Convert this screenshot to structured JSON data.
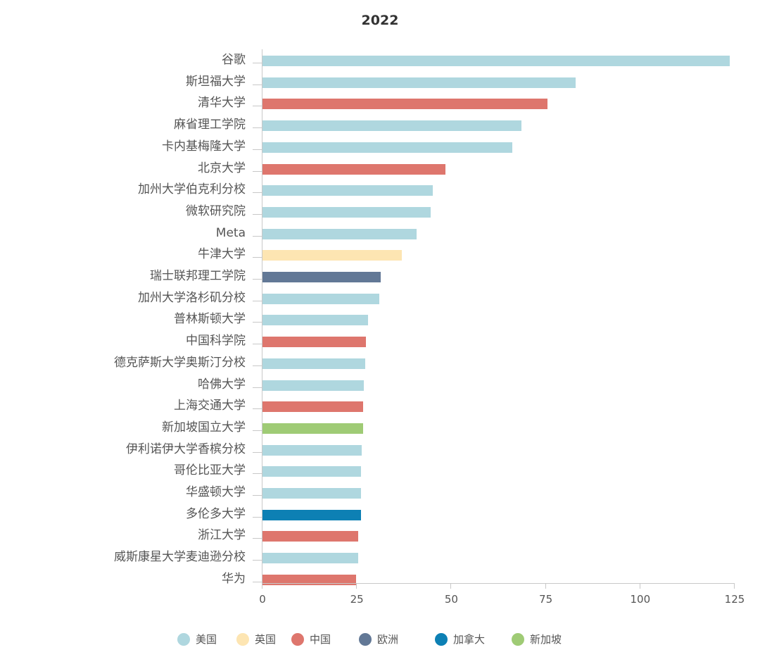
{
  "chart_data": {
    "type": "bar",
    "orientation": "horizontal",
    "title": "2022",
    "xlabel": "",
    "ylabel": "",
    "xlim": [
      0,
      125
    ],
    "x_ticks": [
      "0",
      "25",
      "50",
      "75",
      "100",
      "125"
    ],
    "grid": false,
    "legend_position": "bottom",
    "legend": [
      {
        "name": "美国",
        "color": "#afd7df"
      },
      {
        "name": "英国",
        "color": "#fde5b2"
      },
      {
        "name": "中国",
        "color": "#de766d"
      },
      {
        "name": "欧洲",
        "color": "#627896"
      },
      {
        "name": "加拿大",
        "color": "#0d80b4"
      },
      {
        "name": "新加坡",
        "color": "#9fcb75"
      }
    ],
    "categories": [
      "谷歌",
      "斯坦福大学",
      "清华大学",
      "麻省理工学院",
      "卡内基梅隆大学",
      "北京大学",
      "加州大学伯克利分校",
      "微软研究院",
      "Meta",
      "牛津大学",
      "瑞士联邦理工学院",
      "加州大学洛杉矶分校",
      "普林斯顿大学",
      "中国科学院",
      "德克萨斯大学奥斯汀分校",
      "哈佛大学",
      "上海交通大学",
      "新加坡国立大学",
      "伊利诺伊大学香槟分校",
      "哥伦比亚大学",
      "华盛顿大学",
      "多伦多大学",
      "浙江大学",
      "威斯康星大学麦迪逊分校",
      "华为"
    ],
    "values": [
      123.7,
      82.9,
      75.4,
      68.6,
      66.1,
      48.4,
      45.1,
      44.5,
      40.8,
      36.9,
      31.3,
      30.9,
      27.9,
      27.4,
      27.2,
      26.8,
      26.6,
      26.6,
      26.3,
      26.1,
      26.1,
      26.1,
      25.3,
      25.3,
      24.8
    ],
    "regions": [
      "美国",
      "美国",
      "中国",
      "美国",
      "美国",
      "中国",
      "美国",
      "美国",
      "美国",
      "英国",
      "欧洲",
      "美国",
      "美国",
      "中国",
      "美国",
      "美国",
      "中国",
      "新加坡",
      "美国",
      "美国",
      "美国",
      "加拿大",
      "中国",
      "美国",
      "中国"
    ]
  }
}
